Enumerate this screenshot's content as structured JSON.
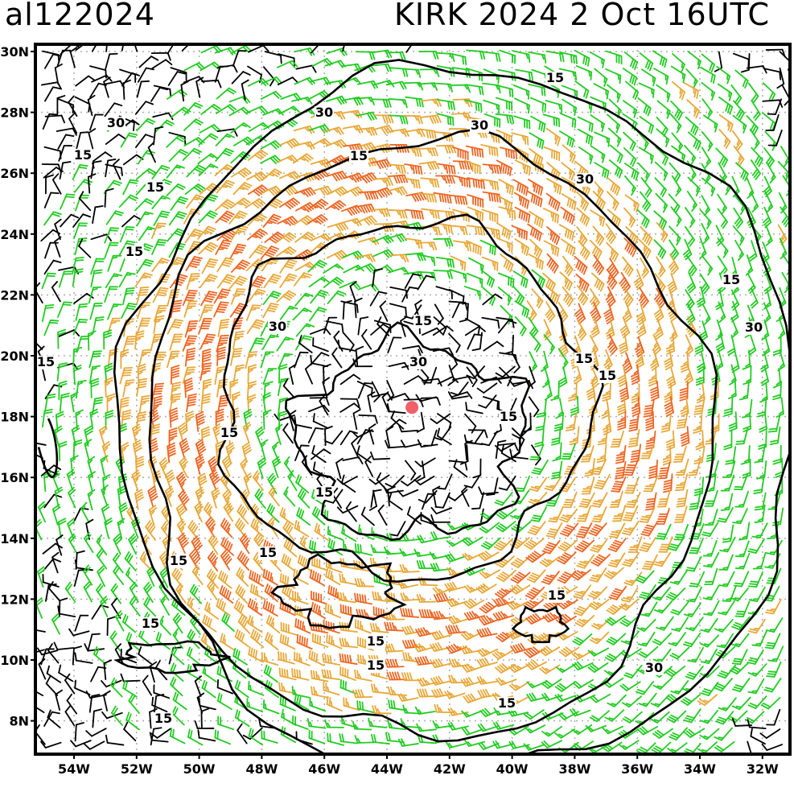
{
  "header": {
    "storm_id": "al122024",
    "storm_title": "KIRK 2024   2 Oct 16UTC"
  },
  "map": {
    "lat_labels": [
      "30N",
      "28N",
      "26N",
      "24N",
      "22N",
      "20N",
      "18N",
      "16N",
      "14N",
      "12N",
      "10N",
      "8N"
    ],
    "lon_labels": [
      "54W",
      "52W",
      "50W",
      "48W",
      "46W",
      "44W",
      "42W",
      "40W",
      "38W",
      "36W",
      "34W",
      "32W"
    ],
    "center": {
      "lat": 18.3,
      "lon": -43.2
    },
    "center_color": "#f0606a",
    "colors": {
      "weak": "#000000",
      "moderate": "#22cc22",
      "strong": "#e8a838",
      "very_strong": "#ee6622"
    },
    "contour_labels": [
      {
        "text": "30"
      },
      {
        "text": "30"
      },
      {
        "text": "30"
      },
      {
        "text": "15"
      },
      {
        "text": "15"
      },
      {
        "text": "15"
      },
      {
        "text": "15"
      },
      {
        "text": "15"
      },
      {
        "text": "30"
      },
      {
        "text": "30"
      },
      {
        "text": "15"
      },
      {
        "text": "30"
      },
      {
        "text": "15"
      },
      {
        "text": "15"
      },
      {
        "text": "15"
      },
      {
        "text": "15"
      },
      {
        "text": "15"
      },
      {
        "text": "15"
      },
      {
        "text": "15"
      },
      {
        "text": "15"
      },
      {
        "text": "15"
      },
      {
        "text": "15"
      },
      {
        "text": "15"
      },
      {
        "text": "15"
      },
      {
        "text": "15"
      },
      {
        "text": "30"
      },
      {
        "text": "30"
      },
      {
        "text": "15"
      },
      {
        "text": "15"
      }
    ]
  }
}
